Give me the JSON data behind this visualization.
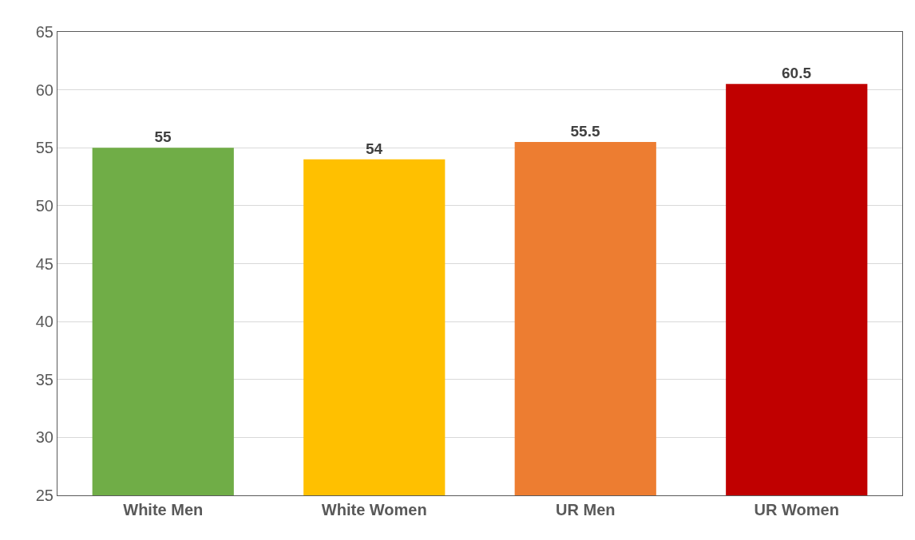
{
  "chart_data": {
    "type": "bar",
    "categories": [
      "White Men",
      "White Women",
      "UR Men",
      "UR Women"
    ],
    "values": [
      55,
      54,
      55.5,
      60.5
    ],
    "colors": [
      "#70ad47",
      "#ffc000",
      "#ed7d31",
      "#c00000"
    ],
    "ylim": [
      25,
      65
    ],
    "yticks": [
      25,
      30,
      35,
      40,
      45,
      50,
      55,
      60,
      65
    ],
    "grid": "y",
    "data_labels": true
  }
}
